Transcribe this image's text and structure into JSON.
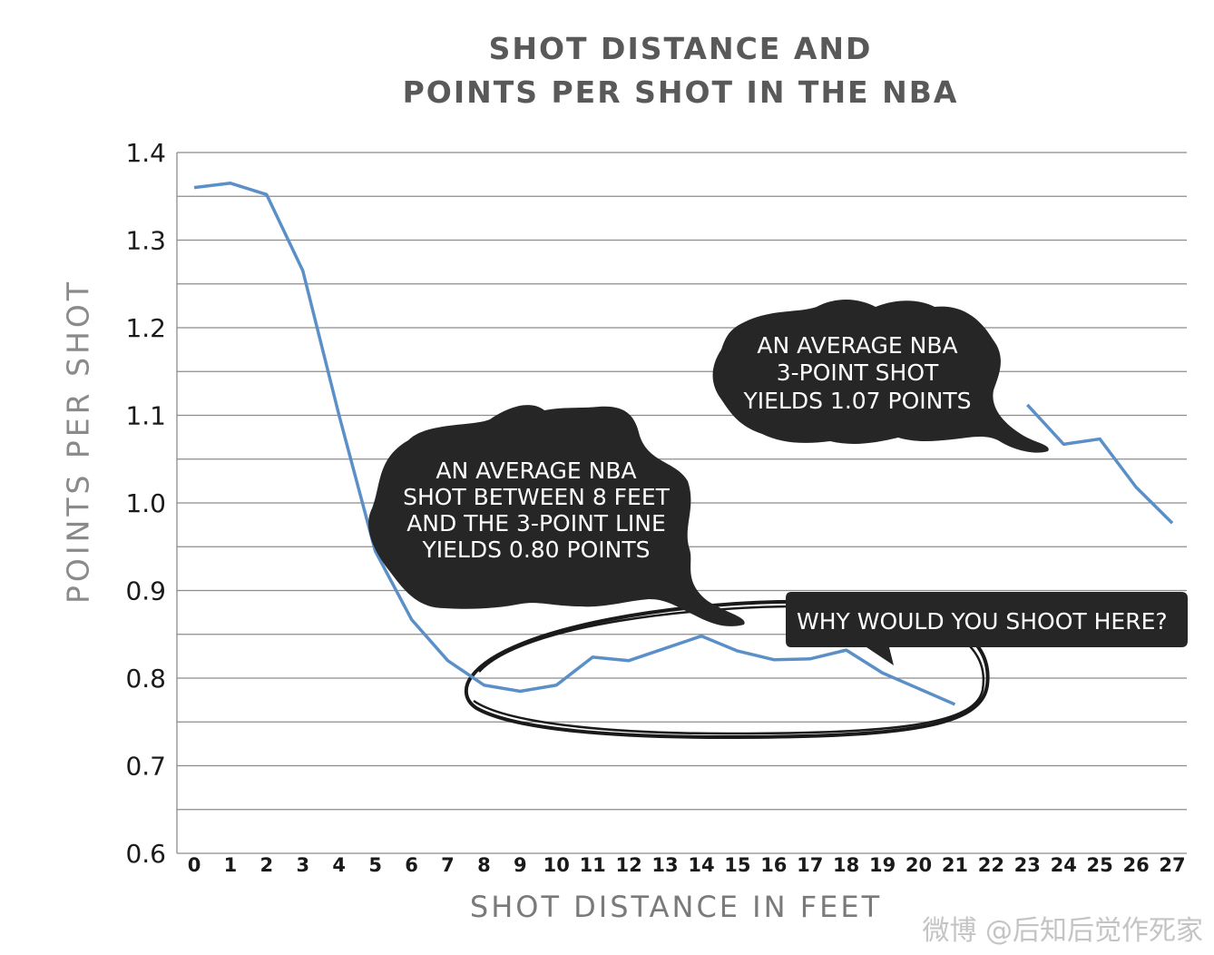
{
  "title_line1": "SHOT DISTANCE AND",
  "title_line2": "POINTS PER SHOT IN THE NBA",
  "watermark": "微博 @后知后觉作死家",
  "callouts": {
    "midrange": [
      "AN AVERAGE NBA",
      "SHOT BETWEEN 8 FEET",
      "AND THE 3-POINT LINE",
      "YIELDS 0.80 POINTS"
    ],
    "three_point": [
      "AN AVERAGE NBA",
      "3-POINT SHOT",
      "YIELDS 1.07 POINTS"
    ],
    "question": "WHY WOULD YOU SHOOT HERE?"
  },
  "colors": {
    "line": "#5b8fc7",
    "grid": "#8c8c8c",
    "bubble": "#262626"
  },
  "chart_data": {
    "type": "line",
    "title": "SHOT DISTANCE AND POINTS PER SHOT IN THE NBA",
    "xlabel": "SHOT DISTANCE IN FEET",
    "ylabel": "POINTS PER SHOT",
    "xlim": [
      0,
      27
    ],
    "ylim": [
      0.6,
      1.4
    ],
    "y_ticks": [
      "1.4",
      "1.3",
      "1.2",
      "1.1",
      "1.0",
      "0.9",
      "0.8",
      "0.7",
      "0.6"
    ],
    "x_ticks": [
      "0",
      "1",
      "2",
      "3",
      "4",
      "5",
      "6",
      "7",
      "8",
      "9",
      "10",
      "11",
      "12",
      "13",
      "14",
      "15",
      "16",
      "17",
      "18",
      "19",
      "20",
      "21",
      "22",
      "23",
      "24",
      "25",
      "26",
      "27"
    ],
    "grid": true,
    "series": [
      {
        "segments": [
          {
            "x": [
              0,
              1,
              2,
              3,
              4,
              5,
              6,
              7,
              8,
              9,
              10,
              11,
              12,
              13,
              14,
              15,
              16,
              17,
              18,
              19,
              20,
              21
            ],
            "y": [
              1.36,
              1.365,
              1.352,
              1.265,
              1.1,
              0.945,
              0.867,
              0.82,
              0.792,
              0.785,
              0.792,
              0.824,
              0.82,
              0.834,
              0.848,
              0.831,
              0.821,
              0.822,
              0.832,
              0.806,
              0.788,
              0.77
            ]
          },
          {
            "x": [
              23,
              24,
              25,
              26,
              27
            ],
            "y": [
              1.112,
              1.067,
              1.073,
              1.018,
              0.977
            ]
          }
        ]
      }
    ]
  }
}
